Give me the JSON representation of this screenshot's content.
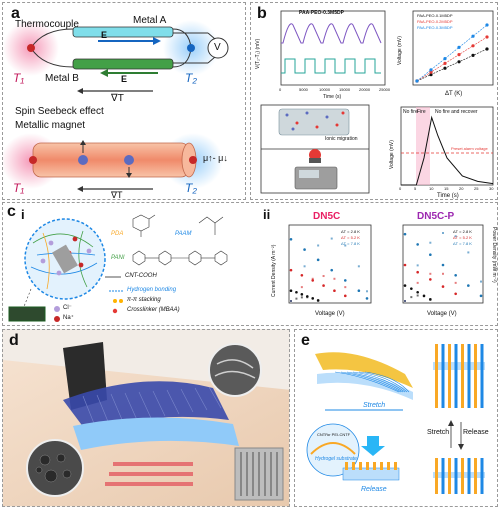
{
  "panels": {
    "a": {
      "label": "a",
      "thermocouple": "Thermocouple",
      "metal_a": "Metal A",
      "metal_b": "Metal B",
      "e_top": "E",
      "e_bottom": "E",
      "voltmeter": "V",
      "t1_top": "T₁",
      "t2_top": "T₂",
      "grad_top": "∇T",
      "spin_title": "Spin Seebeck effect",
      "magnet": "Metallic magnet",
      "t1_bottom": "T₁",
      "t2_bottom": "T₂",
      "grad_bottom": "∇T",
      "mu": "μ↑- μ↓"
    },
    "b": {
      "label": "b",
      "inset_title": "PAA-PEO-0.3M5DP",
      "ylabel_left": "V(T₂-T₁) (mV)",
      "xlabel_left": "Time (s)",
      "xticks_left": [
        "0",
        "5000",
        "10000",
        "15000",
        "20000",
        "25000"
      ],
      "xlabel_right": "ΔT (K)",
      "ylabel_right": "Voltage (mV)",
      "legend_right": [
        "PAA-PEO-0.1M5DP",
        "PAA-PEO-0.2M5DP",
        "PAA-PEO-0.3M5DP"
      ],
      "ionic_migration": "Ionic migration",
      "fire_chart": {
        "xlabel": "Time (s)",
        "ylabel": "Voltage (mV)",
        "region_no_fire": "No fire",
        "region_fire": "Fire",
        "region_recover": "No fire and recover",
        "threshold": "Preset alarm voltage",
        "xticks": [
          "0",
          "5",
          "10",
          "15",
          "20",
          "25",
          "30"
        ]
      }
    },
    "c": {
      "label": "c",
      "sub_i": "i",
      "sub_ii": "ii",
      "pda": "PDA",
      "paam": "PAAM",
      "pani": "PANI",
      "cnt": "CNT-COOH",
      "legend_hbond": "Hydrogen bonding",
      "legend_pipi": "π-π stacking",
      "legend_crosslinker": "Crosslinker (MBAA)",
      "ion_cl": "Cl⁻",
      "ion_na": "Na⁺",
      "chart1_title": "DN5C",
      "chart2_title": "DN5C-P",
      "xlabel": "Voltage (V)",
      "ylabel_left": "Current Density (A m⁻²)",
      "ylabel_right": "Power Density (mW m⁻²)",
      "legend": [
        "ΔT = 2.8 K",
        "ΔT = 5.2 K",
        "ΔT = 7.8 K"
      ]
    },
    "d": {
      "label": "d"
    },
    "e": {
      "label": "e",
      "stretch_top": "Stretch",
      "release_bottom": "Release",
      "cntf": "CNTF",
      "pei_cntf": "or PEI-CNTF",
      "hydrogel": "Hydrogel substrate",
      "stretch_side": "Stretch",
      "release_side": "Release"
    }
  },
  "colors": {
    "red_pink": "#f06292",
    "blue_glow": "#64b5f6",
    "metal_a": "#4dd0e1",
    "metal_b": "#2e7d32",
    "magnet": "#f4a582",
    "series_red": "#d62728",
    "series_blue": "#1f77b4",
    "series_black": "#111111",
    "pink_title": "#e91e63",
    "purple_title": "#9c27b0"
  },
  "chart_data": [
    {
      "type": "line",
      "title": "",
      "xlabel": "Time (s)",
      "ylabel": "V(T₂-T₁) (mV)",
      "x": [
        0,
        5000,
        10000,
        15000,
        20000,
        25000
      ]
    },
    {
      "type": "scatter",
      "xlabel": "ΔT (K)",
      "ylabel": "Voltage (mV)",
      "series": [
        {
          "name": "PAA-PEO-0.1M5DP",
          "x": [
            0,
            1,
            2,
            3,
            4,
            5
          ],
          "values": [
            0,
            4,
            8,
            12,
            16,
            20
          ]
        },
        {
          "name": "PAA-PEO-0.2M5DP",
          "x": [
            0,
            1,
            2,
            3,
            4,
            5
          ],
          "values": [
            0,
            5.5,
            11,
            16.5,
            22,
            27.5
          ]
        },
        {
          "name": "PAA-PEO-0.3M5DP",
          "x": [
            0,
            1,
            2,
            3,
            4,
            5
          ],
          "values": [
            0,
            7,
            14,
            21,
            28,
            35
          ]
        }
      ]
    },
    {
      "type": "line",
      "xlabel": "Time (s)",
      "ylabel": "Voltage (mV)",
      "x": [
        0,
        5,
        7.5,
        10,
        12,
        15,
        20,
        25,
        30
      ],
      "values": [
        0,
        0,
        60,
        150,
        110,
        60,
        20,
        8,
        3
      ],
      "xlim": [
        0,
        30
      ]
    },
    {
      "type": "scatter",
      "title": "DN5C",
      "xlabel": "Voltage (V)",
      "ylabel": "Current Density (A m⁻²)",
      "series": [
        {
          "name": "ΔT = 2.8 K",
          "x": [
            0,
            0.01,
            0.02,
            0.03,
            0.04,
            0.05
          ],
          "values": [
            0.2,
            0.17,
            0.13,
            0.09,
            0.05,
            0.01
          ]
        },
        {
          "name": "ΔT = 5.2 K",
          "x": [
            0,
            0.02,
            0.04,
            0.06,
            0.08,
            0.1
          ],
          "values": [
            0.6,
            0.5,
            0.4,
            0.3,
            0.2,
            0.1
          ]
        },
        {
          "name": "ΔT = 7.8 K",
          "x": [
            0,
            0.025,
            0.05,
            0.075,
            0.1,
            0.125,
            0.14
          ],
          "values": [
            1.2,
            1.0,
            0.8,
            0.6,
            0.4,
            0.2,
            0.05
          ]
        }
      ],
      "xlim": [
        0,
        0.14
      ],
      "ylim": [
        0,
        1.4
      ]
    },
    {
      "type": "scatter",
      "title": "DN5C-P",
      "xlabel": "Voltage (V)",
      "ylabel": "Current Density (A m⁻²)",
      "series": [
        {
          "name": "ΔT = 2.8 K",
          "x": [
            0,
            0.01,
            0.02,
            0.03,
            0.04
          ],
          "values": [
            0.3,
            0.24,
            0.17,
            0.1,
            0.03
          ]
        },
        {
          "name": "ΔT = 5.2 K",
          "x": [
            0,
            0.02,
            0.04,
            0.06,
            0.08
          ],
          "values": [
            0.7,
            0.56,
            0.42,
            0.28,
            0.14
          ]
        },
        {
          "name": "ΔT = 7.8 K",
          "x": [
            0,
            0.02,
            0.04,
            0.06,
            0.08,
            0.1,
            0.12
          ],
          "values": [
            1.3,
            1.1,
            0.9,
            0.7,
            0.5,
            0.3,
            0.1
          ]
        }
      ],
      "xlim": [
        0,
        0.12
      ],
      "ylim": [
        0,
        1.4
      ]
    }
  ]
}
